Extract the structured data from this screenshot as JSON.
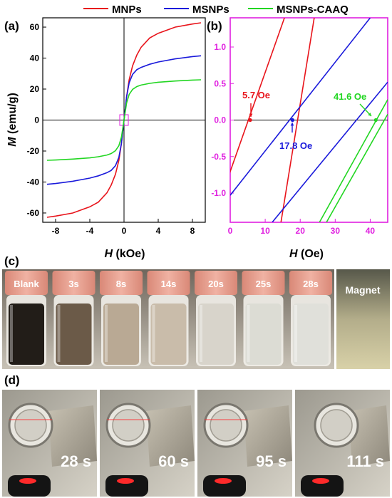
{
  "legend": {
    "items": [
      {
        "name": "MNPs",
        "color": "#e8141b"
      },
      {
        "name": "MSNPs",
        "color": "#1a1adb"
      },
      {
        "name": "MSNPs-CAAQ",
        "color": "#22d622"
      }
    ]
  },
  "chart_data": [
    {
      "panel_label": "(a)",
      "type": "line",
      "xlabel_var": "H",
      "xlabel_unit": " (kOe)",
      "ylabel_var": "M",
      "ylabel_unit": " (emu/g)",
      "xlim": [
        -9.5,
        9.5
      ],
      "ylim": [
        -66,
        66
      ],
      "xticks": [
        -8,
        -4,
        0,
        4,
        8
      ],
      "yticks": [
        -60,
        -40,
        -20,
        0,
        20,
        40,
        60
      ],
      "series": [
        {
          "name": "MNPs",
          "color": "#e8141b",
          "x": [
            -9,
            -8,
            -6,
            -4,
            -3,
            -2,
            -1.5,
            -1,
            -0.6,
            -0.3,
            0,
            0.3,
            0.6,
            1,
            1.5,
            2,
            3,
            4,
            6,
            8,
            9
          ],
          "y": [
            -62.8,
            -62,
            -60,
            -56,
            -53,
            -47,
            -42,
            -35,
            -26,
            -15,
            0,
            15,
            26,
            35,
            42,
            47,
            53,
            56,
            60,
            62,
            62.8
          ]
        },
        {
          "name": "MSNPs",
          "color": "#1a1adb",
          "x": [
            -9,
            -8,
            -6,
            -4,
            -3,
            -2,
            -1.5,
            -1,
            -0.6,
            -0.3,
            0,
            0.3,
            0.6,
            1,
            1.5,
            2,
            3,
            4,
            6,
            8,
            9
          ],
          "y": [
            -41.5,
            -41,
            -39.5,
            -37.5,
            -36,
            -34,
            -32.5,
            -29.5,
            -24,
            -15,
            0,
            15,
            24,
            29.5,
            32.5,
            34,
            36,
            37.5,
            39.5,
            41,
            41.5
          ]
        },
        {
          "name": "MSNPs-CAAQ",
          "color": "#22d622",
          "x": [
            -9,
            -8,
            -6,
            -4,
            -3,
            -2,
            -1.5,
            -1,
            -0.6,
            -0.3,
            0,
            0.3,
            0.6,
            1,
            1.5,
            2,
            3,
            4,
            6,
            8,
            9
          ],
          "y": [
            -26,
            -25.8,
            -25.2,
            -24.4,
            -23.7,
            -22.6,
            -21.6,
            -19.8,
            -16.5,
            -11,
            0,
            11,
            16.5,
            19.8,
            21.6,
            22.6,
            23.7,
            24.4,
            25.2,
            25.8,
            26
          ]
        }
      ]
    },
    {
      "panel_label": "(b)",
      "type": "line",
      "xlabel_var": "H",
      "xlabel_unit": " (Oe)",
      "xlim": [
        0,
        45
      ],
      "ylim": [
        -1.4,
        1.4
      ],
      "xticks": [
        0,
        10,
        20,
        30,
        40
      ],
      "yticks": [
        -1.0,
        -0.5,
        0.0,
        0.5,
        1.0
      ],
      "series": [
        {
          "name": "MNPs",
          "color": "#e8141b",
          "segments": [
            [
              [
                -1,
                -0.84
              ],
              [
                15.5,
                1.4
              ]
            ],
            [
              [
                14.5,
                -1.4
              ],
              [
                24,
                1.4
              ]
            ]
          ]
        },
        {
          "name": "MSNPs",
          "color": "#1a1adb",
          "segments": [
            [
              [
                0,
                -1.03
              ],
              [
                40,
                1.4
              ]
            ],
            [
              [
                12,
                -1.4
              ],
              [
                45,
                0.52
              ]
            ]
          ]
        },
        {
          "name": "MSNPs-CAAQ",
          "color": "#22d622",
          "segments": [
            [
              [
                25.5,
                -1.4
              ],
              [
                45,
                0.28
              ]
            ],
            [
              [
                27.5,
                -1.4
              ],
              [
                45,
                0.08
              ]
            ]
          ]
        }
      ],
      "annotations": [
        {
          "text": "5.7 Oe",
          "color": "#e8141b",
          "x": 5.7,
          "y": 0
        },
        {
          "text": "17.8 Oe",
          "color": "#1a1adb",
          "x": 17.8,
          "y": 0
        },
        {
          "text": "41.6 Oe",
          "color": "#22d622",
          "x": 41.6,
          "y": 0
        }
      ]
    }
  ],
  "panel_c": {
    "label": "(c)",
    "vials": [
      {
        "label": "Blank",
        "fill": "#221d18"
      },
      {
        "label": "3s",
        "fill": "#6b5a48"
      },
      {
        "label": "8s",
        "fill": "#b9a994"
      },
      {
        "label": "14s",
        "fill": "#c9bcaa"
      },
      {
        "label": "20s",
        "fill": "#d8d4cb"
      },
      {
        "label": "25s",
        "fill": "#dcdcd4"
      },
      {
        "label": "28s",
        "fill": "#e0e0da"
      }
    ],
    "magnet_label": "Magnet"
  },
  "panel_d": {
    "label": "(d)",
    "frames": [
      {
        "time": "28 s"
      },
      {
        "time": "60 s"
      },
      {
        "time": "95 s"
      },
      {
        "time": "111 s"
      }
    ]
  }
}
